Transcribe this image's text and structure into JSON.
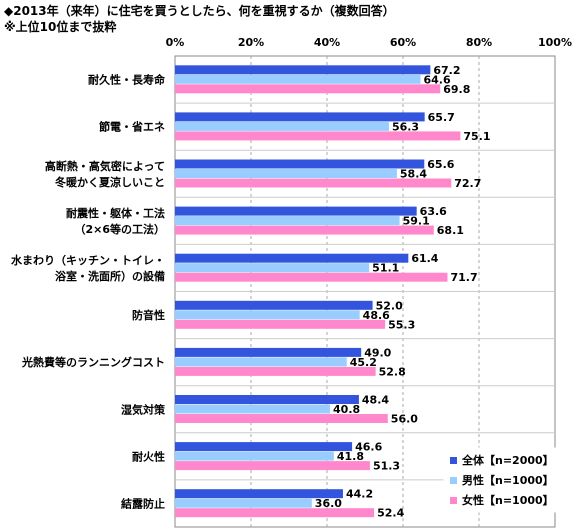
{
  "title_line1": "◆2013年（来年）に住宅を買うとしたら、何を重視するか（複数回答）",
  "title_line2": "※上位10位まで抜粋",
  "chart_data": {
    "type": "bar",
    "orientation": "horizontal",
    "xlim": [
      0,
      100
    ],
    "xticks": [
      "0%",
      "20%",
      "40%",
      "60%",
      "80%",
      "100%"
    ],
    "grid": true,
    "legend_position": "bottom-right",
    "categories": [
      [
        "耐久性・長寿命"
      ],
      [
        "節電・省エネ"
      ],
      [
        "高断熱・高気密によって",
        "冬暖かく夏涼しいこと"
      ],
      [
        "耐震性・躯体・工法",
        "（2×6等の工法）"
      ],
      [
        "水まわり（キッチン・トイレ・",
        "浴室・洗面所）の設備"
      ],
      [
        "防音性"
      ],
      [
        "光熱費等のランニングコスト"
      ],
      [
        "湿気対策"
      ],
      [
        "耐火性"
      ],
      [
        "結露防止"
      ]
    ],
    "series": [
      {
        "name": "全体",
        "n_label": "【n=2000】",
        "color": "#3355dd",
        "values": [
          67.2,
          65.7,
          65.6,
          63.6,
          61.4,
          52.0,
          49.0,
          48.4,
          46.6,
          44.2
        ]
      },
      {
        "name": "男性",
        "n_label": "【n=1000】",
        "color": "#99ccff",
        "values": [
          64.6,
          56.3,
          58.4,
          59.1,
          51.1,
          48.6,
          45.2,
          40.8,
          41.8,
          36.0
        ]
      },
      {
        "name": "女性",
        "n_label": "【n=1000】",
        "color": "#ff88cc",
        "values": [
          69.8,
          75.1,
          72.7,
          68.1,
          71.7,
          55.3,
          52.8,
          56.0,
          51.3,
          52.4
        ]
      }
    ]
  }
}
